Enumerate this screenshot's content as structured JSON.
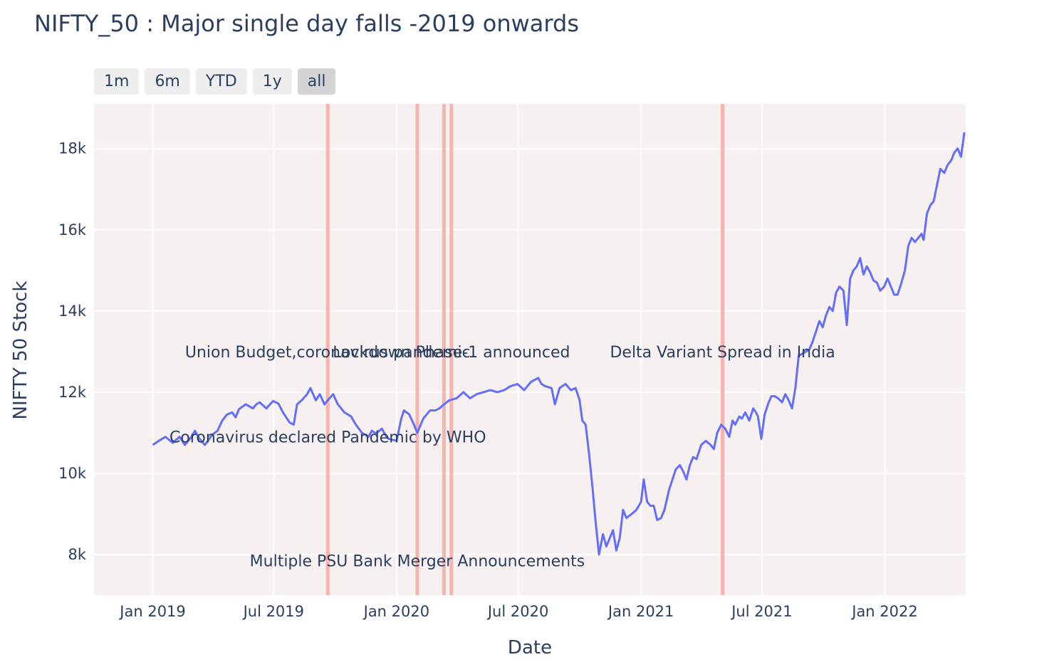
{
  "chart_data": {
    "type": "line",
    "title": "NIFTY_50 : Major single day falls -2019 onwards",
    "xlabel": "Date",
    "ylabel": "NIFTY 50 Stock",
    "x_range": [
      "2018-10-05",
      "2022-05-02"
    ],
    "ylim": [
      7000,
      19100
    ],
    "x_ticks": [
      {
        "date": "2019-01-01",
        "label": "Jan 2019"
      },
      {
        "date": "2019-07-01",
        "label": "Jul 2019"
      },
      {
        "date": "2020-01-01",
        "label": "Jan 2020"
      },
      {
        "date": "2020-07-01",
        "label": "Jul 2020"
      },
      {
        "date": "2021-01-01",
        "label": "Jan 2021"
      },
      {
        "date": "2021-07-01",
        "label": "Jul 2021"
      },
      {
        "date": "2022-01-01",
        "label": "Jan 2022"
      }
    ],
    "y_ticks": [
      {
        "value": 8000,
        "label": "8k"
      },
      {
        "value": 10000,
        "label": "10k"
      },
      {
        "value": 12000,
        "label": "12k"
      },
      {
        "value": 14000,
        "label": "14k"
      },
      {
        "value": 16000,
        "label": "16k"
      },
      {
        "value": 18000,
        "label": "18k"
      }
    ],
    "grid": true,
    "series": [
      {
        "color": "#636efa",
        "points": [
          [
            "2019-01-01",
            10700
          ],
          [
            "2019-01-10",
            10800
          ],
          [
            "2019-01-20",
            10900
          ],
          [
            "2019-01-31",
            10750
          ],
          [
            "2019-02-10",
            10900
          ],
          [
            "2019-02-18",
            10700
          ],
          [
            "2019-02-28",
            10900
          ],
          [
            "2019-03-05",
            11050
          ],
          [
            "2019-03-12",
            10850
          ],
          [
            "2019-03-20",
            10700
          ],
          [
            "2019-03-31",
            10950
          ],
          [
            "2019-04-08",
            11050
          ],
          [
            "2019-04-15",
            11300
          ],
          [
            "2019-04-22",
            11450
          ],
          [
            "2019-04-30",
            11500
          ],
          [
            "2019-05-05",
            11380
          ],
          [
            "2019-05-10",
            11580
          ],
          [
            "2019-05-20",
            11700
          ],
          [
            "2019-05-31",
            11600
          ],
          [
            "2019-06-05",
            11700
          ],
          [
            "2019-06-10",
            11750
          ],
          [
            "2019-06-20",
            11600
          ],
          [
            "2019-06-30",
            11780
          ],
          [
            "2019-07-08",
            11720
          ],
          [
            "2019-07-15",
            11500
          ],
          [
            "2019-07-25",
            11250
          ],
          [
            "2019-07-31",
            11200
          ],
          [
            "2019-08-05",
            11700
          ],
          [
            "2019-08-12",
            11800
          ],
          [
            "2019-08-20",
            11950
          ],
          [
            "2019-08-25",
            12100
          ],
          [
            "2019-09-02",
            11800
          ],
          [
            "2019-09-08",
            11950
          ],
          [
            "2019-09-15",
            11700
          ],
          [
            "2019-09-20",
            11800
          ],
          [
            "2019-09-28",
            11950
          ],
          [
            "2019-10-05",
            11700
          ],
          [
            "2019-10-15",
            11500
          ],
          [
            "2019-10-25",
            11400
          ],
          [
            "2019-11-01",
            11200
          ],
          [
            "2019-11-10",
            11000
          ],
          [
            "2019-11-20",
            10900
          ],
          [
            "2019-11-25",
            11050
          ],
          [
            "2019-12-01",
            10980
          ],
          [
            "2019-12-10",
            11100
          ],
          [
            "2019-12-15",
            10950
          ],
          [
            "2019-12-20",
            10850
          ],
          [
            "2020-01-01",
            10800
          ],
          [
            "2020-01-08",
            11350
          ],
          [
            "2020-01-12",
            11550
          ],
          [
            "2020-01-20",
            11450
          ],
          [
            "2020-01-27",
            11200
          ],
          [
            "2020-02-01",
            11000
          ],
          [
            "2020-02-10",
            11350
          ],
          [
            "2020-02-20",
            11550
          ],
          [
            "2020-02-28",
            11550
          ],
          [
            "2020-03-05",
            11600
          ],
          [
            "2020-03-12",
            11700
          ],
          [
            "2020-03-20",
            11800
          ],
          [
            "2020-03-31",
            11850
          ],
          [
            "2020-04-10",
            12000
          ],
          [
            "2020-04-20",
            11850
          ],
          [
            "2020-04-30",
            11950
          ],
          [
            "2020-05-10",
            12000
          ],
          [
            "2020-05-20",
            12050
          ],
          [
            "2020-05-31",
            12000
          ],
          [
            "2020-06-10",
            12050
          ],
          [
            "2020-06-20",
            12150
          ],
          [
            "2020-06-30",
            12200
          ],
          [
            "2020-07-10",
            12050
          ],
          [
            "2020-07-20",
            12250
          ],
          [
            "2020-07-31",
            12350
          ],
          [
            "2020-08-05",
            12200
          ],
          [
            "2020-08-10",
            12150
          ],
          [
            "2020-08-20",
            12100
          ],
          [
            "2020-08-25",
            11700
          ],
          [
            "2020-09-01",
            12100
          ],
          [
            "2020-09-05",
            12150
          ],
          [
            "2020-09-10",
            12200
          ],
          [
            "2020-09-18",
            12050
          ],
          [
            "2020-09-25",
            12100
          ],
          [
            "2020-10-01",
            11800
          ],
          [
            "2020-10-05",
            11300
          ],
          [
            "2020-10-10",
            11200
          ],
          [
            "2020-10-15",
            10500
          ],
          [
            "2020-10-20",
            9700
          ],
          [
            "2020-10-25",
            8800
          ],
          [
            "2020-10-30",
            8000
          ],
          [
            "2020-11-05",
            8500
          ],
          [
            "2020-11-10",
            8200
          ],
          [
            "2020-11-15",
            8400
          ],
          [
            "2020-11-20",
            8600
          ],
          [
            "2020-11-25",
            8100
          ],
          [
            "2020-11-30",
            8400
          ],
          [
            "2020-12-05",
            9100
          ],
          [
            "2020-12-10",
            8900
          ],
          [
            "2020-12-18",
            9000
          ],
          [
            "2020-12-25",
            9100
          ],
          [
            "2021-01-01",
            9300
          ],
          [
            "2021-01-05",
            9850
          ],
          [
            "2021-01-10",
            9300
          ],
          [
            "2021-01-15",
            9200
          ],
          [
            "2021-01-20",
            9200
          ],
          [
            "2021-01-25",
            8850
          ],
          [
            "2021-01-31",
            8900
          ],
          [
            "2021-02-05",
            9100
          ],
          [
            "2021-02-12",
            9600
          ],
          [
            "2021-02-18",
            9900
          ],
          [
            "2021-02-22",
            10100
          ],
          [
            "2021-02-28",
            10200
          ],
          [
            "2021-03-05",
            10050
          ],
          [
            "2021-03-10",
            9850
          ],
          [
            "2021-03-15",
            10200
          ],
          [
            "2021-03-20",
            10400
          ],
          [
            "2021-03-25",
            10350
          ],
          [
            "2021-04-01",
            10700
          ],
          [
            "2021-04-08",
            10800
          ],
          [
            "2021-04-15",
            10700
          ],
          [
            "2021-04-20",
            10600
          ],
          [
            "2021-04-25",
            11000
          ],
          [
            "2021-05-01",
            11200
          ],
          [
            "2021-05-07",
            11100
          ],
          [
            "2021-05-13",
            10900
          ],
          [
            "2021-05-18",
            11300
          ],
          [
            "2021-05-22",
            11200
          ],
          [
            "2021-05-28",
            11400
          ],
          [
            "2021-06-01",
            11350
          ],
          [
            "2021-06-06",
            11500
          ],
          [
            "2021-06-12",
            11300
          ],
          [
            "2021-06-18",
            11600
          ],
          [
            "2021-06-22",
            11500
          ],
          [
            "2021-06-25",
            11400
          ],
          [
            "2021-06-30",
            10850
          ],
          [
            "2021-07-05",
            11450
          ],
          [
            "2021-07-10",
            11700
          ],
          [
            "2021-07-15",
            11900
          ],
          [
            "2021-07-20",
            11900
          ],
          [
            "2021-07-25",
            11850
          ],
          [
            "2021-07-31",
            11750
          ],
          [
            "2021-08-05",
            11950
          ],
          [
            "2021-08-10",
            11800
          ],
          [
            "2021-08-15",
            11600
          ],
          [
            "2021-08-20",
            12100
          ],
          [
            "2021-08-25",
            12900
          ],
          [
            "2021-08-31",
            12950
          ],
          [
            "2021-09-05",
            13000
          ],
          [
            "2021-09-10",
            13050
          ],
          [
            "2021-09-15",
            13250
          ],
          [
            "2021-09-20",
            13500
          ],
          [
            "2021-09-25",
            13750
          ],
          [
            "2021-09-30",
            13600
          ],
          [
            "2021-10-05",
            13900
          ],
          [
            "2021-10-10",
            14100
          ],
          [
            "2021-10-15",
            14000
          ],
          [
            "2021-10-20",
            14450
          ],
          [
            "2021-10-25",
            14600
          ],
          [
            "2021-10-31",
            14500
          ],
          [
            "2021-11-05",
            13650
          ],
          [
            "2021-11-10",
            14800
          ],
          [
            "2021-11-15",
            15000
          ],
          [
            "2021-11-20",
            15100
          ],
          [
            "2021-11-25",
            15300
          ],
          [
            "2021-11-30",
            14900
          ],
          [
            "2021-12-05",
            15100
          ],
          [
            "2021-12-10",
            14950
          ],
          [
            "2021-12-15",
            14750
          ],
          [
            "2021-12-20",
            14700
          ],
          [
            "2021-12-25",
            14500
          ],
          [
            "2021-12-31",
            14600
          ],
          [
            "2022-01-05",
            14800
          ],
          [
            "2022-01-10",
            14600
          ],
          [
            "2022-01-15",
            14400
          ],
          [
            "2022-01-20",
            14400
          ],
          [
            "2022-01-25",
            14650
          ],
          [
            "2022-01-31",
            15000
          ],
          [
            "2022-02-05",
            15600
          ],
          [
            "2022-02-10",
            15800
          ],
          [
            "2022-02-15",
            15700
          ],
          [
            "2022-02-20",
            15800
          ],
          [
            "2022-02-25",
            15900
          ],
          [
            "2022-02-28",
            15750
          ],
          [
            "2022-03-05",
            16400
          ],
          [
            "2022-03-10",
            16600
          ],
          [
            "2022-03-15",
            16700
          ],
          [
            "2022-03-20",
            17100
          ],
          [
            "2022-03-25",
            17500
          ],
          [
            "2022-03-31",
            17400
          ],
          [
            "2022-04-05",
            17600
          ],
          [
            "2022-04-10",
            17700
          ],
          [
            "2022-04-15",
            17900
          ],
          [
            "2022-04-20",
            18000
          ],
          [
            "2022-04-25",
            17800
          ],
          [
            "2022-04-30",
            18400
          ]
        ]
      }
    ],
    "event_lines": [
      {
        "date": "2019-09-20",
        "color": "#f8a9a0"
      },
      {
        "date": "2020-02-01",
        "color": "#f8a9a0"
      },
      {
        "date": "2020-03-12",
        "color": "#f8a9a0"
      },
      {
        "date": "2020-03-23",
        "color": "#f8a9a0"
      },
      {
        "date": "2021-05-03",
        "color": "#f8a9a0"
      }
    ],
    "annotations": [
      {
        "text": "Union Budget,coronavirus pandemic",
        "date": "2019-09-20",
        "value": 13000
      },
      {
        "text": "Coronavirus declared Pandemic by WHO",
        "date": "2019-09-20",
        "value": 10900
      },
      {
        "text": "Multiple PSU Bank Merger Announcements",
        "date": "2020-02-01",
        "value": 7850
      },
      {
        "text": "Lockdown Phase-1 announced",
        "date": "2020-03-23",
        "value": 13000
      },
      {
        "text": "Delta Variant Spread in India",
        "date": "2021-05-03",
        "value": 13000
      }
    ],
    "colors": {
      "plot_background": "#f7f0f1",
      "grid": "#ffffff",
      "event_line": "#f8a9a0",
      "series": "#636efa"
    }
  },
  "range_selector": {
    "buttons": [
      {
        "label": "1m",
        "active": false
      },
      {
        "label": "6m",
        "active": false
      },
      {
        "label": "YTD",
        "active": false
      },
      {
        "label": "1y",
        "active": false
      },
      {
        "label": "all",
        "active": true
      }
    ]
  }
}
